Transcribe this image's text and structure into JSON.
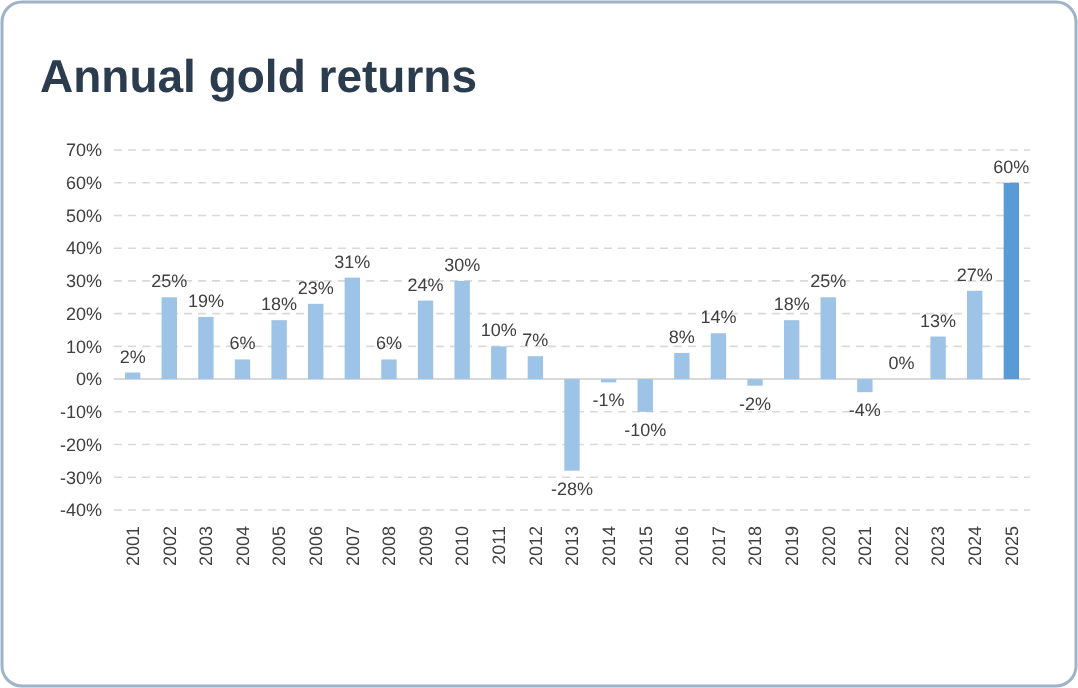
{
  "chart_data": {
    "type": "bar",
    "title": "Annual gold returns",
    "categories": [
      "2001",
      "2002",
      "2003",
      "2004",
      "2005",
      "2006",
      "2007",
      "2008",
      "2009",
      "2010",
      "2011",
      "2012",
      "2013",
      "2014",
      "2015",
      "2016",
      "2017",
      "2018",
      "2019",
      "2020",
      "2021",
      "2022",
      "2023",
      "2024",
      "2025"
    ],
    "values": [
      2,
      25,
      19,
      6,
      18,
      23,
      31,
      6,
      24,
      30,
      10,
      7,
      -28,
      -1,
      -10,
      8,
      14,
      -2,
      18,
      25,
      -4,
      0,
      13,
      27,
      60
    ],
    "value_labels": [
      "2%",
      "25%",
      "19%",
      "6%",
      "18%",
      "23%",
      "31%",
      "6%",
      "24%",
      "30%",
      "10%",
      "7%",
      "-28%",
      "-1%",
      "-10%",
      "8%",
      "14%",
      "-2%",
      "18%",
      "25%",
      "-4%",
      "0%",
      "13%",
      "27%",
      "60%"
    ],
    "colors": [
      "#9dc3e6",
      "#9dc3e6",
      "#9dc3e6",
      "#9dc3e6",
      "#9dc3e6",
      "#9dc3e6",
      "#9dc3e6",
      "#9dc3e6",
      "#9dc3e6",
      "#9dc3e6",
      "#9dc3e6",
      "#9dc3e6",
      "#9dc3e6",
      "#9dc3e6",
      "#9dc3e6",
      "#9dc3e6",
      "#9dc3e6",
      "#9dc3e6",
      "#9dc3e6",
      "#9dc3e6",
      "#9dc3e6",
      "#9dc3e6",
      "#9dc3e6",
      "#9dc3e6",
      "#5b9bd5"
    ],
    "ylim": [
      -40,
      70
    ],
    "yticks": [
      {
        "value": -40,
        "label": "-40%"
      },
      {
        "value": -30,
        "label": "-30%"
      },
      {
        "value": -20,
        "label": "-20%"
      },
      {
        "value": -10,
        "label": "-10%"
      },
      {
        "value": 0,
        "label": "0%"
      },
      {
        "value": 10,
        "label": "10%"
      },
      {
        "value": 20,
        "label": "20%"
      },
      {
        "value": 30,
        "label": "30%"
      },
      {
        "value": 40,
        "label": "40%"
      },
      {
        "value": 50,
        "label": "50%"
      },
      {
        "value": 60,
        "label": "60%"
      },
      {
        "value": 70,
        "label": "70%"
      }
    ],
    "grid": "y"
  }
}
